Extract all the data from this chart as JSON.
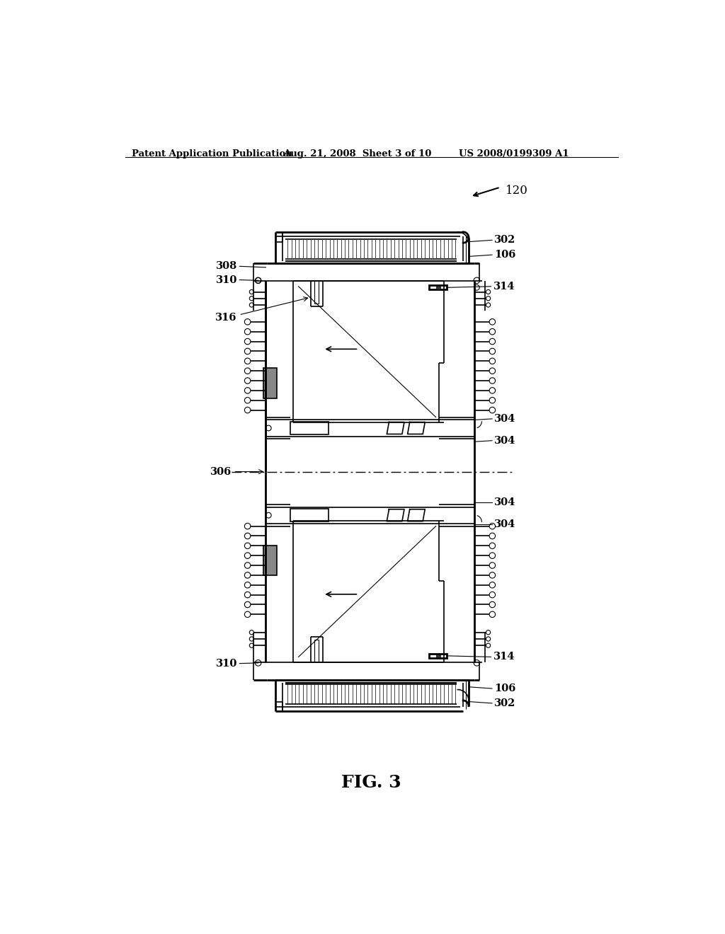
{
  "bg_color": "#ffffff",
  "header_text": "Patent Application Publication",
  "header_date": "Aug. 21, 2008  Sheet 3 of 10",
  "header_patent": "US 2008/0199309 A1",
  "fig_label": "FIG. 3",
  "ref_120": "120",
  "labels": {
    "302_top": "302",
    "106_top": "106",
    "308": "308",
    "310_top": "310",
    "314_top": "314",
    "316": "316",
    "304_a": "304",
    "304_b": "304",
    "306": "306",
    "304_c": "304",
    "304_d": "304",
    "310_bot": "310",
    "314_bot": "314",
    "106_bot": "106",
    "302_bot": "302"
  },
  "lw_outer": 2.0,
  "lw_inner": 1.2,
  "lw_thin": 0.8,
  "hatch_color": "#444444",
  "line_color": "#000000"
}
